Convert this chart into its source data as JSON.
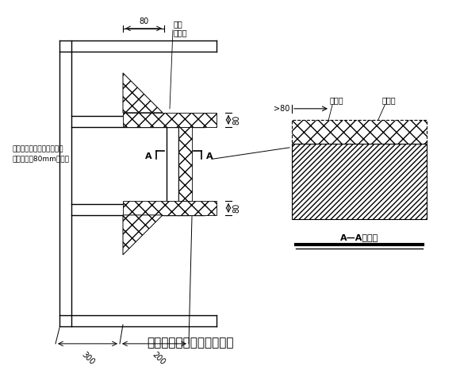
{
  "title": "门窗洞口附加网络布示意图",
  "title_fontsize": 11,
  "bg_color": "#ffffff",
  "line_color": "#000000",
  "label_80_top": "80",
  "label_80_right1": "80",
  "label_80_right2": "80",
  "label_300": "300",
  "label_200": "200",
  "label_gt80": ">80",
  "label_fujia": "附加",
  "label_wanggebu_top": "网格布",
  "label_wanggebu_right": "网格布",
  "label_jisuba": "挤塑板",
  "label_AA": "A—A剖面图",
  "label_A_left": "A",
  "label_A_right": "A",
  "label_note1": "与墙体接触一面用粘结砂浆",
  "label_note2": "预粘不小于80mm网格布"
}
